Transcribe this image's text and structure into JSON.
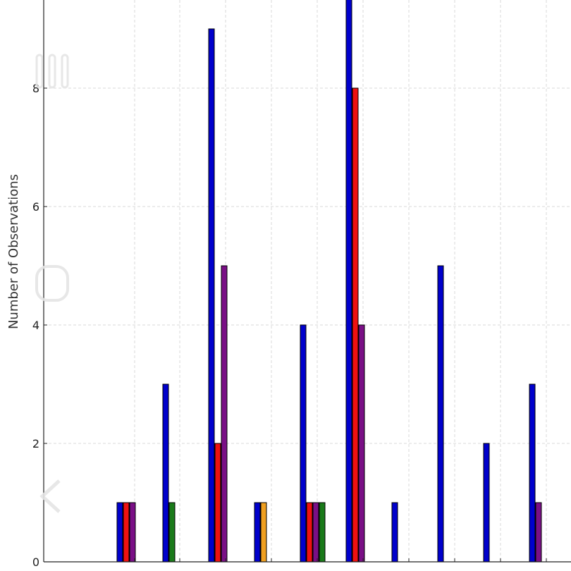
{
  "chart_data": {
    "type": "bar",
    "ylabel": "Number of Observations",
    "xlabel": "",
    "ylim": [
      0,
      9.5
    ],
    "yticks": [
      0,
      2,
      4,
      6,
      8
    ],
    "grid": true,
    "categories": [
      "",
      "",
      "",
      "",
      "",
      "",
      "",
      "",
      "",
      ""
    ],
    "series": [
      {
        "color": "#0000cc",
        "values": [
          1,
          3,
          9,
          1,
          4,
          10,
          1,
          5,
          2,
          3
        ]
      },
      {
        "color": "#ee1111",
        "values": [
          1,
          0,
          2,
          0,
          1,
          8,
          0,
          0,
          0,
          0
        ]
      },
      {
        "color": "#7a0f86",
        "values": [
          1,
          0,
          5,
          0,
          1,
          4,
          0,
          0,
          0,
          1
        ]
      },
      {
        "color": "#1a7a1a",
        "values": [
          0,
          1,
          0,
          0,
          1,
          0,
          0,
          0,
          0,
          0
        ]
      },
      {
        "color": "#f0a020",
        "values": [
          0,
          0,
          0,
          1,
          0,
          0,
          0,
          0,
          0,
          0
        ]
      }
    ]
  },
  "overlay": {
    "icons": [
      "pause-icon",
      "circle-icon",
      "chevron-left-icon"
    ]
  }
}
